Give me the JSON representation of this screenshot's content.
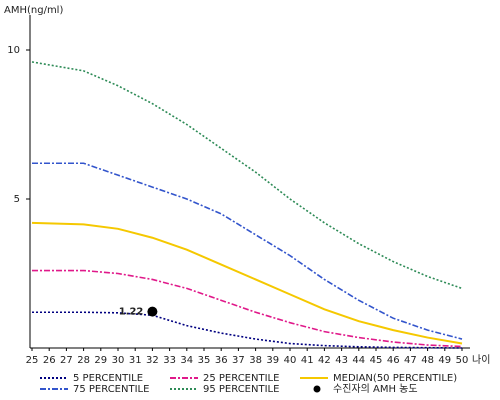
{
  "chart_data": {
    "type": "line",
    "y_label": "AMH(ng/ml)",
    "x_label": "나이",
    "x": [
      25,
      28,
      30,
      32,
      34,
      36,
      38,
      40,
      42,
      44,
      46,
      48,
      50
    ],
    "xlim": [
      25,
      50
    ],
    "xticks": [
      25,
      26,
      27,
      28,
      29,
      30,
      31,
      32,
      33,
      34,
      35,
      36,
      37,
      38,
      39,
      40,
      41,
      42,
      43,
      44,
      45,
      46,
      47,
      48,
      49,
      50
    ],
    "ylim": [
      0,
      11.2
    ],
    "yticks": [
      5,
      10
    ],
    "series": [
      {
        "name": "5 PERCENTILE",
        "color": "#000080",
        "dash": "2,2",
        "values": [
          1.2,
          1.2,
          1.18,
          1.1,
          0.75,
          0.5,
          0.3,
          0.15,
          0.08,
          0.04,
          0.02,
          0.01,
          0.0
        ]
      },
      {
        "name": "75 PERCENTILE",
        "color": "#3355cc",
        "dash": "6,2,2,2",
        "values": [
          6.2,
          6.2,
          5.8,
          5.4,
          5.0,
          4.5,
          3.8,
          3.1,
          2.3,
          1.6,
          1.0,
          0.6,
          0.3
        ]
      },
      {
        "name": "25 PERCENTILE",
        "color": "#e0198a",
        "dash": "6,2,2,2",
        "values": [
          2.6,
          2.6,
          2.5,
          2.3,
          2.0,
          1.6,
          1.2,
          0.85,
          0.55,
          0.35,
          0.2,
          0.1,
          0.05
        ]
      },
      {
        "name": "95 PERCENTILE",
        "color": "#2e8b57",
        "dash": "2,2",
        "values": [
          9.6,
          9.3,
          8.8,
          8.2,
          7.5,
          6.7,
          5.9,
          5.0,
          4.2,
          3.5,
          2.9,
          2.4,
          2.0
        ]
      },
      {
        "name": "MEDIAN(50 PERCENTILE)",
        "color": "#f5c800",
        "dash": "none",
        "values": [
          4.2,
          4.15,
          4.0,
          3.7,
          3.3,
          2.8,
          2.3,
          1.8,
          1.3,
          0.9,
          0.6,
          0.35,
          0.15
        ]
      }
    ],
    "point": {
      "name": "수진자의 AMH 농도",
      "x": 32,
      "y": 1.22,
      "color": "#000000"
    }
  }
}
